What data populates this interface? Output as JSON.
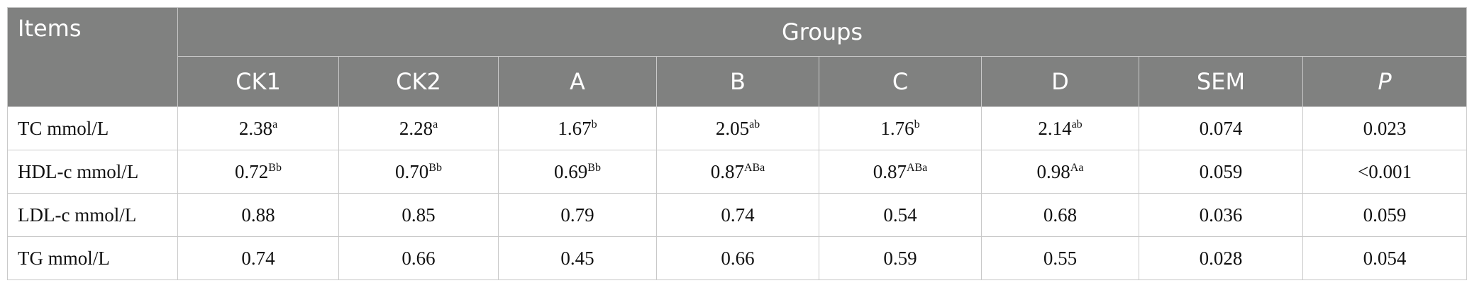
{
  "header": {
    "items": "Items",
    "groups": "Groups",
    "columns": [
      "CK1",
      "CK2",
      "A",
      "B",
      "C",
      "D",
      "SEM",
      "P"
    ]
  },
  "rows": [
    {
      "label": "TC mmol/L",
      "cells": [
        {
          "value": "2.38",
          "sup": "a"
        },
        {
          "value": "2.28",
          "sup": "a"
        },
        {
          "value": "1.67",
          "sup": "b"
        },
        {
          "value": "2.05",
          "sup": "ab"
        },
        {
          "value": "1.76",
          "sup": "b"
        },
        {
          "value": "2.14",
          "sup": "ab"
        },
        {
          "value": "0.074"
        },
        {
          "value": "0.023"
        }
      ]
    },
    {
      "label": "HDL-c mmol/L",
      "cells": [
        {
          "value": "0.72",
          "sup": "Bb"
        },
        {
          "value": "0.70",
          "sup": "Bb"
        },
        {
          "value": "0.69",
          "sup": "Bb"
        },
        {
          "value": "0.87",
          "sup": "ABa"
        },
        {
          "value": "0.87",
          "sup": "ABa"
        },
        {
          "value": "0.98",
          "sup": "Aa"
        },
        {
          "value": "0.059"
        },
        {
          "value": "<0.001"
        }
      ]
    },
    {
      "label": "LDL-c mmol/L",
      "cells": [
        {
          "value": "0.88"
        },
        {
          "value": "0.85"
        },
        {
          "value": "0.79"
        },
        {
          "value": "0.74"
        },
        {
          "value": "0.54"
        },
        {
          "value": "0.68"
        },
        {
          "value": "0.036"
        },
        {
          "value": "0.059"
        }
      ]
    },
    {
      "label": "TG mmol/L",
      "cells": [
        {
          "value": "0.74"
        },
        {
          "value": "0.66"
        },
        {
          "value": "0.45"
        },
        {
          "value": "0.66"
        },
        {
          "value": "0.59"
        },
        {
          "value": "0.55"
        },
        {
          "value": "0.028"
        },
        {
          "value": "0.054"
        }
      ]
    }
  ]
}
